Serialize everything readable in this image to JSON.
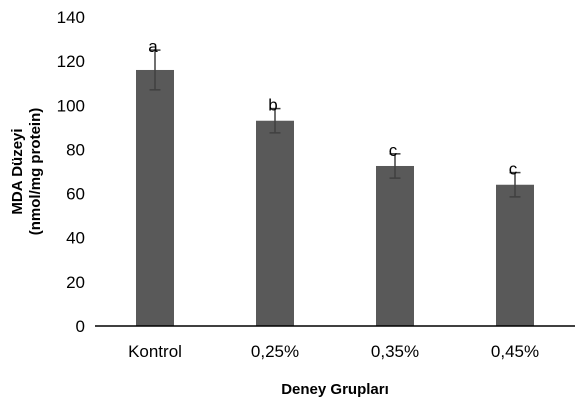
{
  "chart_data": {
    "type": "bar",
    "categories": [
      "Kontrol",
      "0,25%",
      "0,35%",
      "0,45%"
    ],
    "values": [
      116,
      93,
      72.5,
      64
    ],
    "errors": [
      9,
      5.5,
      5.5,
      5.5
    ],
    "significance_labels": [
      "a",
      "b",
      "c",
      "c"
    ],
    "xlabel": "Deney Grupları",
    "ylabel_line1": "MDA Düzeyi",
    "ylabel_line2": "(nmol/mg protein)",
    "ylim": [
      0,
      140
    ],
    "yticks": [
      0,
      20,
      40,
      60,
      80,
      100,
      120,
      140
    ],
    "grid": false,
    "legend": "none",
    "bar_color": "#595959",
    "error_color": "#404040",
    "axis_color": "#000000"
  }
}
